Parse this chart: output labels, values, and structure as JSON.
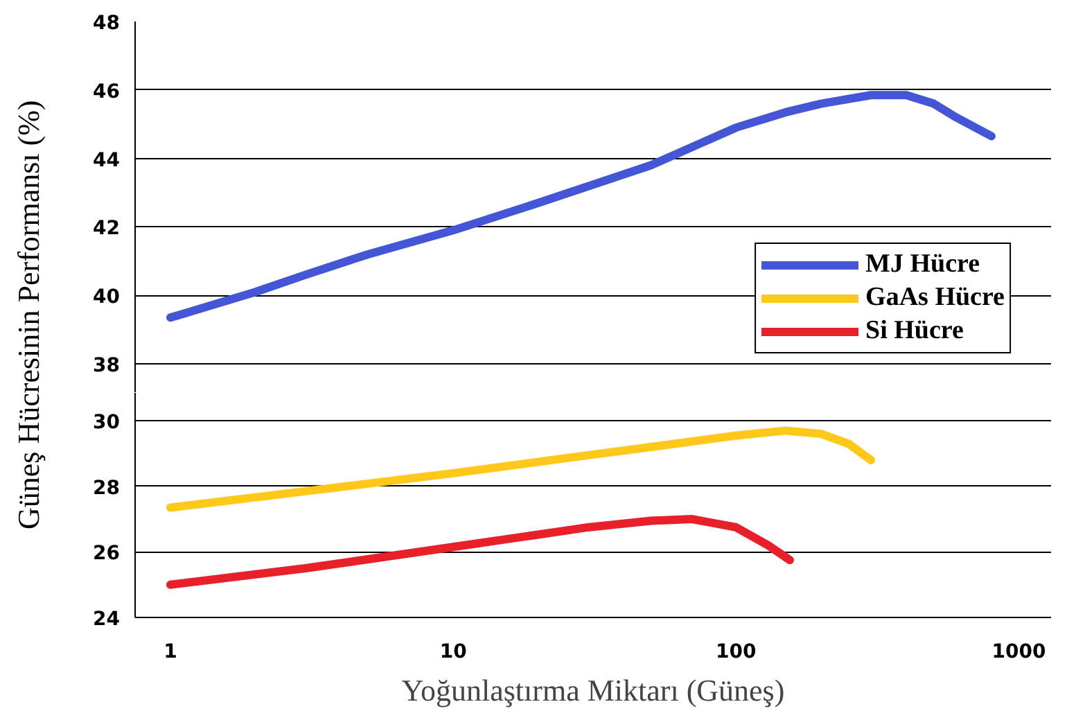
{
  "chart_data": [
    {
      "type": "line",
      "ylabel": "Güneş Hücresinin Performansı (%)",
      "log": "x",
      "xlim": [
        0.75,
        1300
      ],
      "xticks": [
        1,
        10,
        100,
        1000
      ],
      "ylim": [
        37.15,
        48
      ],
      "yticks": [
        38,
        40,
        42,
        44,
        46,
        48
      ],
      "grid": "y",
      "legend": "bottom right",
      "tick_labels": "y",
      "series": [
        {
          "name": "MJ Hücre",
          "color": "#4455d6",
          "x": [
            1,
            2,
            3,
            5,
            10,
            20,
            50,
            100,
            150,
            200,
            300,
            400,
            500,
            600,
            800
          ],
          "values": [
            39.35,
            40.1,
            40.6,
            41.2,
            41.9,
            42.7,
            43.8,
            44.9,
            45.35,
            45.6,
            45.85,
            45.85,
            45.6,
            45.2,
            44.65
          ]
        }
      ]
    },
    {
      "type": "line",
      "xlabel": "Yoğunlaştırma Miktarı (Güneş)",
      "log": "x",
      "xlim": [
        0.75,
        1300
      ],
      "xticks": [
        1,
        10,
        100,
        1000
      ],
      "ylim": [
        24,
        30.85
      ],
      "yticks": [
        24,
        26,
        28,
        30
      ],
      "grid": "y",
      "legend": "top right",
      "series": [
        {
          "name": "GaAs Hücre",
          "color": "#ffc81a",
          "x": [
            1,
            3,
            10,
            30,
            50,
            100,
            150,
            200,
            250,
            300
          ],
          "values": [
            27.35,
            27.85,
            28.4,
            28.95,
            29.2,
            29.55,
            29.7,
            29.6,
            29.3,
            28.8
          ]
        },
        {
          "name": "Si Hücre",
          "color": "#e8202a",
          "x": [
            1,
            3,
            10,
            30,
            50,
            70,
            100,
            130,
            155
          ],
          "values": [
            25.0,
            25.5,
            26.15,
            26.75,
            26.95,
            27.0,
            26.75,
            26.2,
            25.75
          ]
        }
      ]
    }
  ]
}
